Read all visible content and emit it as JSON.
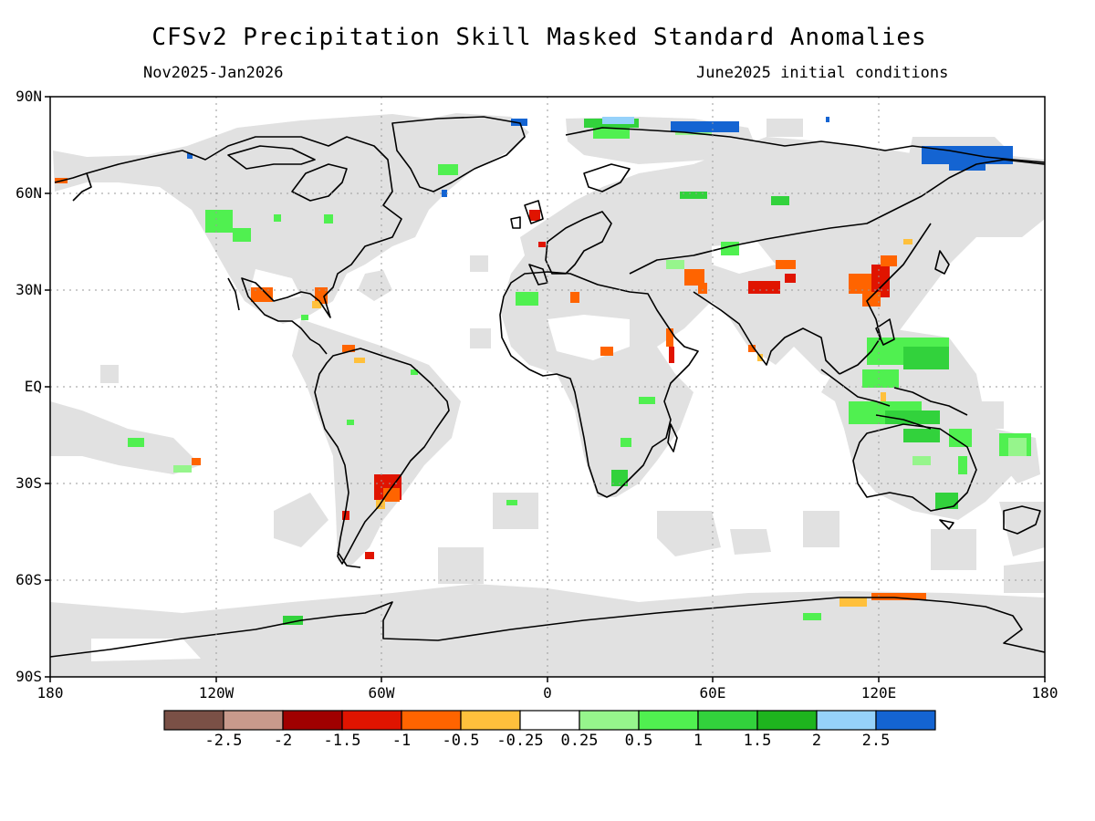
{
  "title": "CFSv2 Precipitation Skill Masked Standard Anomalies",
  "subtitle_left": "Nov2025-Jan2026",
  "subtitle_right": "June2025 initial conditions",
  "y_axis_labels": [
    "90N",
    "60N",
    "30N",
    "EQ",
    "30S",
    "60S",
    "90S"
  ],
  "x_axis_labels": [
    "180",
    "120W",
    "60W",
    "0",
    "60E",
    "120E",
    "180"
  ],
  "colorbar": {
    "colors": [
      "#7a5046",
      "#c89a8c",
      "#a00000",
      "#e01400",
      "#ff6400",
      "#ffc03c",
      "#ffffff",
      "#96f58c",
      "#50f050",
      "#32d23c",
      "#1eb41e",
      "#96d2fa",
      "#1464d2"
    ],
    "labels": [
      "-2.5",
      "-2",
      "-1.5",
      "-1",
      "-0.5",
      "-0.25",
      "0.25",
      "0.5",
      "1",
      "1.5",
      "2",
      "2.5"
    ]
  },
  "map_colors": {
    "masked": "#e1e1e1",
    "coast": "#000000",
    "grid": "#9a9a9a"
  }
}
